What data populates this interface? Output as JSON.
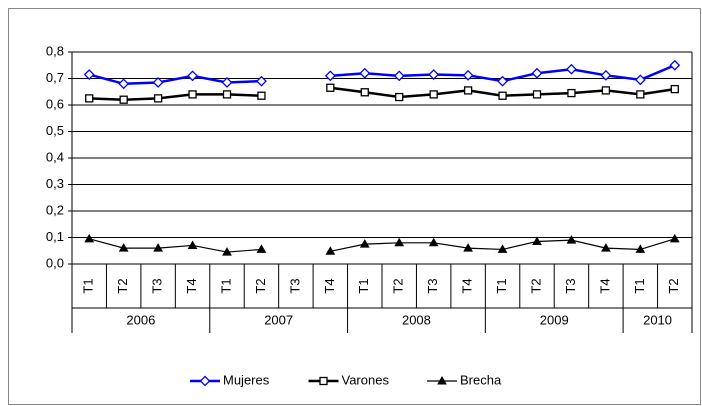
{
  "chart_data": {
    "type": "line",
    "categories": [
      "T1",
      "T2",
      "T3",
      "T4",
      "T1",
      "T2",
      "T3",
      "T4",
      "T1",
      "T2",
      "T3",
      "T4",
      "T1",
      "T2",
      "T3",
      "T4",
      "T1",
      "T2"
    ],
    "category_groups": [
      "2006",
      null,
      null,
      null,
      "2007",
      null,
      null,
      null,
      "2008",
      null,
      null,
      null,
      "2009",
      null,
      null,
      null,
      "2010",
      null
    ],
    "ylim": [
      0,
      0.8
    ],
    "yticks": [
      {
        "value": 0,
        "label": "0,0"
      },
      {
        "value": 0.1,
        "label": "0,1"
      },
      {
        "value": 0.2,
        "label": "0,2"
      },
      {
        "value": 0.3,
        "label": "0,3"
      },
      {
        "value": 0.4,
        "label": "0,4"
      },
      {
        "value": 0.5,
        "label": "0,5"
      },
      {
        "value": 0.6,
        "label": "0,6"
      },
      {
        "value": 0.7,
        "label": "0,7"
      },
      {
        "value": 0.8,
        "label": "0,8"
      }
    ],
    "grid": true,
    "legend": "bottom",
    "series": [
      {
        "name": "Mujeres",
        "color": "#0000ff",
        "marker": "diamond",
        "values": [
          0.715,
          0.68,
          0.685,
          0.71,
          0.685,
          0.69,
          null,
          0.71,
          0.72,
          0.71,
          0.715,
          0.712,
          0.69,
          0.72,
          0.735,
          0.712,
          0.695,
          0.75
        ]
      },
      {
        "name": "Varones",
        "color": "#000000",
        "marker": "square",
        "values": [
          0.625,
          0.62,
          0.625,
          0.64,
          0.64,
          0.635,
          null,
          0.665,
          0.648,
          0.63,
          0.64,
          0.655,
          0.635,
          0.64,
          0.645,
          0.655,
          0.64,
          0.66
        ]
      },
      {
        "name": "Brecha",
        "color": "#000000",
        "marker": "triangle",
        "values": [
          0.095,
          0.06,
          0.06,
          0.07,
          0.045,
          0.055,
          null,
          0.048,
          0.075,
          0.08,
          0.08,
          0.06,
          0.055,
          0.085,
          0.09,
          0.06,
          0.055,
          0.095
        ]
      }
    ]
  }
}
